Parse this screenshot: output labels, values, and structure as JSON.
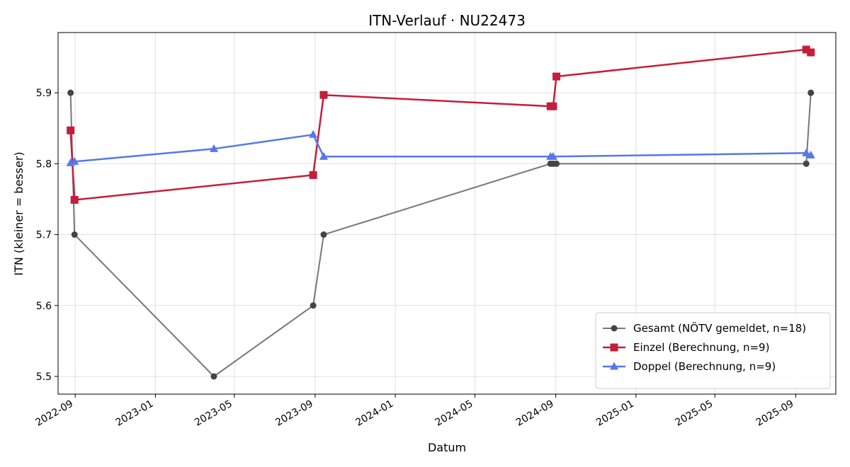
{
  "chart_data": {
    "type": "line",
    "title": "ITN-Verlauf · NU22473",
    "xlabel": "Datum",
    "ylabel": "ITN  (kleiner = besser)",
    "x_type": "date",
    "xlim": [
      "2022-08-06",
      "2025-11-01"
    ],
    "ylim": [
      5.475,
      5.985
    ],
    "x_ticks": [
      "2022-09-01",
      "2023-01-01",
      "2023-05-01",
      "2023-09-01",
      "2024-01-01",
      "2024-05-01",
      "2024-09-01",
      "2025-01-01",
      "2025-05-01",
      "2025-09-01"
    ],
    "x_tick_labels": [
      "2022-09",
      "2023-01",
      "2023-05",
      "2023-09",
      "2024-01",
      "2024-05",
      "2024-09",
      "2025-01",
      "2025-05",
      "2025-09"
    ],
    "y_ticks": [
      5.5,
      5.6,
      5.7,
      5.8,
      5.9
    ],
    "y_tick_labels": [
      "5.5",
      "5.6",
      "5.7",
      "5.8",
      "5.9"
    ],
    "grid": true,
    "legend_position": "bottom-right",
    "series": [
      {
        "name": "Gesamt (NÖTV gemeldet, n=18)",
        "color": "#444444",
        "marker": "circle",
        "points": [
          {
            "x": "2022-08-25",
            "y": 5.9
          },
          {
            "x": "2022-08-31",
            "y": 5.7
          },
          {
            "x": "2023-03-31",
            "y": 5.5
          },
          {
            "x": "2023-08-29",
            "y": 5.6
          },
          {
            "x": "2023-09-14",
            "y": 5.7
          },
          {
            "x": "2024-08-24",
            "y": 5.8
          },
          {
            "x": "2024-08-28",
            "y": 5.8
          },
          {
            "x": "2024-09-02",
            "y": 5.8
          },
          {
            "x": "2025-09-17",
            "y": 5.8
          },
          {
            "x": "2025-09-24",
            "y": 5.9
          }
        ]
      },
      {
        "name": "Einzel (Berechnung, n=9)",
        "color": "#c41e3a",
        "marker": "square",
        "points": [
          {
            "x": "2022-08-25",
            "y": 5.847
          },
          {
            "x": "2022-08-31",
            "y": 5.749
          },
          {
            "x": "2023-08-29",
            "y": 5.784
          },
          {
            "x": "2023-09-14",
            "y": 5.897
          },
          {
            "x": "2024-08-24",
            "y": 5.881
          },
          {
            "x": "2024-08-28",
            "y": 5.881
          },
          {
            "x": "2024-09-02",
            "y": 5.923
          },
          {
            "x": "2025-09-17",
            "y": 5.961
          },
          {
            "x": "2025-09-24",
            "y": 5.957
          }
        ]
      },
      {
        "name": "Doppel (Berechnung, n=9)",
        "color": "#5577ee",
        "marker": "triangle",
        "points": [
          {
            "x": "2022-08-25",
            "y": 5.801
          },
          {
            "x": "2022-08-31",
            "y": 5.803
          },
          {
            "x": "2023-03-31",
            "y": 5.821
          },
          {
            "x": "2023-08-29",
            "y": 5.841
          },
          {
            "x": "2023-09-14",
            "y": 5.81
          },
          {
            "x": "2024-08-24",
            "y": 5.81
          },
          {
            "x": "2024-08-28",
            "y": 5.81
          },
          {
            "x": "2025-09-17",
            "y": 5.815
          },
          {
            "x": "2025-09-24",
            "y": 5.812
          }
        ]
      }
    ]
  }
}
